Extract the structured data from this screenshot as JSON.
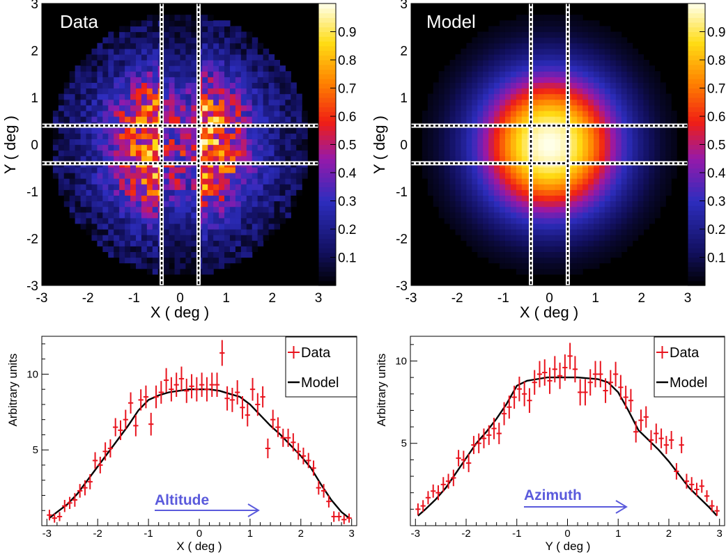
{
  "chart_data": [
    {
      "id": "data-map",
      "type": "heatmap",
      "panel_label": "Data",
      "xlabel": "X ( deg )",
      "ylabel": "Y ( deg )",
      "xlim": [
        -3.0,
        3.0
      ],
      "ylim": [
        -3.0,
        3.0
      ],
      "xticks": [
        "-3",
        "-2",
        "-1",
        "0",
        "1",
        "2",
        "3"
      ],
      "yticks": [
        "-3",
        "-2",
        "-1",
        "0",
        "1",
        "2",
        "3"
      ],
      "colorbar_ticks": [
        "0.1",
        "0.2",
        "0.3",
        "0.4",
        "0.5",
        "0.6",
        "0.7",
        "0.8",
        "0.9"
      ],
      "colorbar_range": [
        0.0,
        1.0
      ],
      "bins": 50,
      "extent_radius": 2.8,
      "noisy": true,
      "band_half_width": 0.4
    },
    {
      "id": "model-map",
      "type": "heatmap",
      "panel_label": "Model",
      "xlabel": "X ( deg )",
      "ylabel": "Y ( deg )",
      "xlim": [
        -3.0,
        3.0
      ],
      "ylim": [
        -3.0,
        3.0
      ],
      "xticks": [
        "-3",
        "-2",
        "-1",
        "0",
        "1",
        "2",
        "3"
      ],
      "yticks": [
        "-3",
        "-2",
        "-1",
        "0",
        "1",
        "2",
        "3"
      ],
      "colorbar_ticks": [
        "0.1",
        "0.2",
        "0.3",
        "0.4",
        "0.5",
        "0.6",
        "0.7",
        "0.8",
        "0.9"
      ],
      "colorbar_range": [
        0.0,
        1.0
      ],
      "bins": 50,
      "extent_radius": 2.8,
      "noisy": false,
      "band_half_width": 0.4
    },
    {
      "id": "altitude-profile",
      "type": "line",
      "xlabel": "X ( deg )",
      "ylabel": "Arbitrary units",
      "xlim": [
        -3.1,
        3.1
      ],
      "ylim": [
        0,
        12.5
      ],
      "xticks": [
        "-3",
        "-2",
        "-1",
        "0",
        "1",
        "2",
        "3"
      ],
      "yticks": [
        "5",
        "10"
      ],
      "annotation": "Altitude",
      "legend": [
        "Data",
        "Model"
      ],
      "legend_position": "top-right",
      "series": [
        {
          "name": "Data",
          "style": "errorbar",
          "x": [
            -2.95,
            -2.85,
            -2.75,
            -2.65,
            -2.55,
            -2.45,
            -2.35,
            -2.25,
            -2.15,
            -2.05,
            -1.95,
            -1.85,
            -1.75,
            -1.65,
            -1.55,
            -1.45,
            -1.35,
            -1.25,
            -1.15,
            -1.05,
            -0.95,
            -0.85,
            -0.75,
            -0.65,
            -0.55,
            -0.45,
            -0.35,
            -0.25,
            -0.15,
            -0.05,
            0.05,
            0.15,
            0.25,
            0.35,
            0.45,
            0.55,
            0.65,
            0.75,
            0.85,
            0.95,
            1.05,
            1.15,
            1.25,
            1.35,
            1.45,
            1.55,
            1.65,
            1.75,
            1.85,
            1.95,
            2.05,
            2.15,
            2.25,
            2.35,
            2.45,
            2.55,
            2.65,
            2.75,
            2.85,
            2.95
          ],
          "y": [
            0.7,
            0.5,
            0.6,
            1.3,
            1.5,
            1.7,
            2.3,
            2.5,
            2.9,
            4.3,
            4.0,
            4.9,
            5.1,
            6.5,
            6.3,
            7.0,
            8.1,
            6.6,
            8.3,
            8.5,
            6.7,
            8.5,
            8.8,
            9.6,
            9.0,
            9.3,
            9.7,
            8.9,
            9.2,
            9.0,
            9.3,
            9.0,
            9.3,
            9.3,
            11.4,
            8.4,
            8.3,
            8.8,
            7.8,
            7.3,
            9.0,
            8.0,
            8.5,
            5.1,
            7.0,
            6.5,
            5.8,
            5.8,
            5.5,
            4.9,
            4.6,
            4.3,
            3.8,
            2.5,
            2.3,
            1.6,
            0.6,
            0.6,
            0.4,
            0.5
          ],
          "err": [
            0.35,
            0.3,
            0.3,
            0.4,
            0.4,
            0.45,
            0.45,
            0.5,
            0.5,
            0.55,
            0.55,
            0.6,
            0.6,
            0.6,
            0.65,
            0.65,
            0.7,
            0.7,
            0.7,
            0.75,
            0.75,
            0.75,
            0.75,
            0.8,
            0.8,
            0.8,
            0.8,
            0.8,
            0.8,
            0.8,
            0.8,
            0.8,
            0.8,
            0.8,
            0.85,
            0.8,
            0.8,
            0.8,
            0.75,
            0.75,
            0.75,
            0.75,
            0.7,
            0.65,
            0.65,
            0.65,
            0.6,
            0.6,
            0.6,
            0.55,
            0.55,
            0.5,
            0.5,
            0.45,
            0.45,
            0.4,
            0.35,
            0.3,
            0.3,
            0.3
          ]
        },
        {
          "name": "Model",
          "style": "line",
          "x": [
            -2.95,
            -2.8,
            -2.6,
            -2.4,
            -2.2,
            -2.0,
            -1.8,
            -1.6,
            -1.4,
            -1.2,
            -1.0,
            -0.8,
            -0.6,
            -0.4,
            -0.2,
            0.0,
            0.2,
            0.4,
            0.6,
            0.8,
            1.0,
            1.2,
            1.4,
            1.6,
            1.8,
            2.0,
            2.2,
            2.4,
            2.6,
            2.8,
            2.95
          ],
          "y": [
            0.5,
            0.9,
            1.4,
            2.1,
            3.0,
            3.9,
            4.8,
            5.7,
            6.6,
            7.6,
            8.3,
            8.6,
            8.8,
            8.9,
            9.0,
            9.0,
            9.0,
            8.9,
            8.7,
            8.5,
            8.0,
            7.3,
            6.6,
            6.0,
            5.3,
            4.6,
            3.8,
            2.7,
            1.7,
            0.9,
            0.5
          ]
        }
      ]
    },
    {
      "id": "azimuth-profile",
      "type": "line",
      "xlabel": "Y ( deg )",
      "ylabel": "Arbitrary units",
      "xlim": [
        -3.1,
        3.1
      ],
      "ylim": [
        0,
        11.5
      ],
      "xticks": [
        "-3",
        "-2",
        "-1",
        "0",
        "1",
        "2",
        "3"
      ],
      "yticks": [
        "5",
        "10"
      ],
      "annotation": "Azimuth",
      "legend": [
        "Data",
        "Model"
      ],
      "legend_position": "top-right",
      "series": [
        {
          "name": "Data",
          "style": "errorbar",
          "x": [
            -2.95,
            -2.85,
            -2.75,
            -2.65,
            -2.55,
            -2.45,
            -2.35,
            -2.25,
            -2.15,
            -2.05,
            -1.95,
            -1.85,
            -1.75,
            -1.65,
            -1.55,
            -1.45,
            -1.35,
            -1.25,
            -1.15,
            -1.05,
            -0.95,
            -0.85,
            -0.75,
            -0.65,
            -0.55,
            -0.45,
            -0.35,
            -0.25,
            -0.15,
            -0.05,
            0.05,
            0.15,
            0.25,
            0.35,
            0.45,
            0.55,
            0.65,
            0.75,
            0.85,
            0.95,
            1.05,
            1.15,
            1.25,
            1.35,
            1.45,
            1.55,
            1.65,
            1.75,
            1.85,
            1.95,
            2.05,
            2.15,
            2.25,
            2.35,
            2.45,
            2.55,
            2.65,
            2.75,
            2.85,
            2.95
          ],
          "y": [
            1.0,
            1.2,
            1.7,
            2.1,
            2.0,
            2.5,
            2.7,
            2.9,
            4.1,
            4.0,
            3.8,
            4.9,
            5.0,
            5.3,
            5.5,
            5.9,
            5.6,
            6.8,
            7.2,
            7.8,
            8.3,
            8.0,
            7.6,
            8.7,
            9.2,
            9.3,
            8.8,
            9.5,
            9.1,
            9.6,
            10.3,
            9.5,
            8.1,
            8.1,
            8.7,
            9.2,
            9.2,
            8.2,
            8.7,
            9.2,
            8.4,
            7.8,
            7.6,
            5.7,
            6.4,
            6.6,
            5.2,
            5.6,
            5.3,
            4.9,
            5.2,
            3.3,
            4.9,
            2.7,
            2.5,
            2.2,
            2.4,
            1.8,
            1.2,
            0.9
          ],
          "err": [
            0.35,
            0.35,
            0.4,
            0.4,
            0.45,
            0.45,
            0.45,
            0.5,
            0.5,
            0.55,
            0.55,
            0.55,
            0.6,
            0.6,
            0.6,
            0.65,
            0.65,
            0.7,
            0.7,
            0.7,
            0.75,
            0.75,
            0.75,
            0.75,
            0.8,
            0.8,
            0.8,
            0.8,
            0.8,
            0.8,
            0.8,
            0.8,
            0.8,
            0.8,
            0.8,
            0.8,
            0.8,
            0.75,
            0.75,
            0.75,
            0.75,
            0.7,
            0.7,
            0.65,
            0.65,
            0.65,
            0.6,
            0.6,
            0.6,
            0.55,
            0.55,
            0.5,
            0.5,
            0.45,
            0.45,
            0.4,
            0.4,
            0.35,
            0.35,
            0.3
          ]
        },
        {
          "name": "Model",
          "style": "line",
          "x": [
            -2.95,
            -2.8,
            -2.6,
            -2.4,
            -2.2,
            -2.0,
            -1.8,
            -1.6,
            -1.4,
            -1.2,
            -1.0,
            -0.8,
            -0.6,
            -0.4,
            -0.2,
            0.0,
            0.2,
            0.4,
            0.6,
            0.8,
            1.0,
            1.2,
            1.4,
            1.6,
            1.8,
            2.0,
            2.2,
            2.4,
            2.6,
            2.8,
            2.95
          ],
          "y": [
            0.6,
            1.0,
            1.6,
            2.3,
            3.2,
            4.1,
            5.0,
            5.7,
            6.5,
            7.4,
            8.5,
            8.8,
            8.9,
            9.0,
            9.0,
            9.0,
            9.0,
            8.95,
            8.9,
            8.7,
            8.1,
            7.0,
            5.8,
            5.2,
            4.6,
            3.9,
            3.1,
            2.3,
            1.7,
            1.1,
            0.6
          ]
        }
      ]
    }
  ],
  "colors": {
    "data_points": "#e8141e",
    "model_line": "#000000",
    "annotation_text": "#5a5adc",
    "annotation_arrow": "#5a5adc",
    "band_outline": "#ffffff",
    "band_dash": "#000000"
  }
}
